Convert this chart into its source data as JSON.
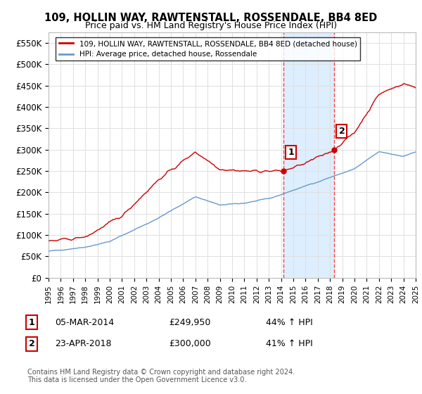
{
  "title": "109, HOLLIN WAY, RAWTENSTALL, ROSSENDALE, BB4 8ED",
  "subtitle": "Price paid vs. HM Land Registry's House Price Index (HPI)",
  "ylim": [
    0,
    575000
  ],
  "yticks": [
    0,
    50000,
    100000,
    150000,
    200000,
    250000,
    300000,
    350000,
    400000,
    450000,
    500000,
    550000
  ],
  "ytick_labels": [
    "£0",
    "£50K",
    "£100K",
    "£150K",
    "£200K",
    "£250K",
    "£300K",
    "£350K",
    "£400K",
    "£450K",
    "£500K",
    "£550K"
  ],
  "sale1_year": 2014.17,
  "sale1_price": 249950,
  "sale1_price_str": "£249,950",
  "sale1_label": "1",
  "sale1_date": "05-MAR-2014",
  "sale1_hpi": "44% ↑ HPI",
  "sale2_year": 2018.31,
  "sale2_price": 300000,
  "sale2_price_str": "£300,000",
  "sale2_label": "2",
  "sale2_date": "23-APR-2018",
  "sale2_hpi": "41% ↑ HPI",
  "line1_color": "#cc0000",
  "line2_color": "#6699cc",
  "shade_color": "#ddeeff",
  "vline_color": "#ff4444",
  "grid_color": "#e0e0e0",
  "background_color": "#ffffff",
  "legend_label1": "109, HOLLIN WAY, RAWTENSTALL, ROSSENDALE, BB4 8ED (detached house)",
  "legend_label2": "HPI: Average price, detached house, Rossendale",
  "footer": "Contains HM Land Registry data © Crown copyright and database right 2024.\nThis data is licensed under the Open Government Licence v3.0."
}
